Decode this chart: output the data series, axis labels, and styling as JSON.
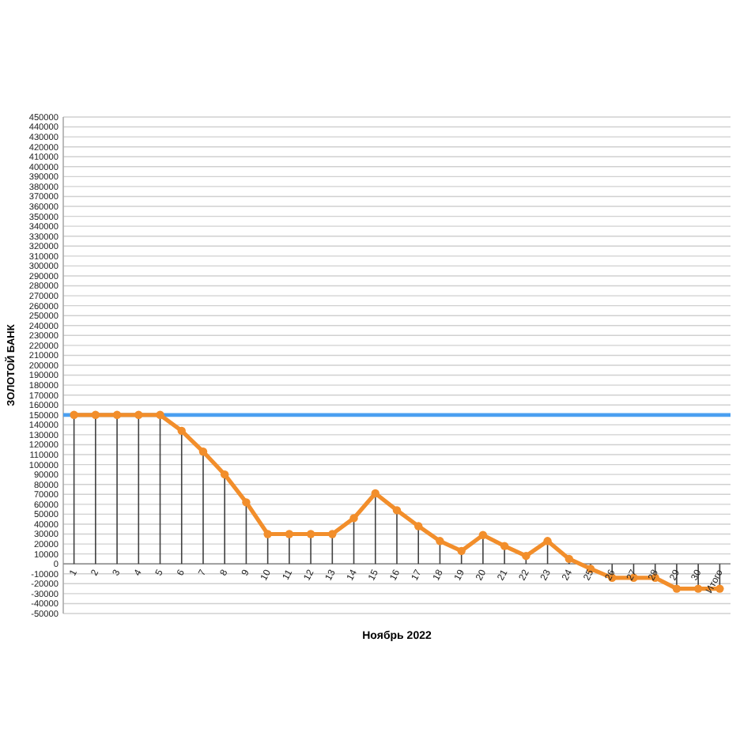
{
  "chart_data": {
    "type": "line",
    "xlabel": "Ноябрь 2022",
    "ylabel": "ЗОЛОТОЙ БАНК",
    "categories": [
      "1",
      "2",
      "3",
      "4",
      "5",
      "6",
      "7",
      "8",
      "9",
      "10",
      "11",
      "12",
      "13",
      "14",
      "15",
      "16",
      "17",
      "18",
      "19",
      "20",
      "21",
      "22",
      "23",
      "24",
      "25",
      "26",
      "27",
      "28",
      "29",
      "30",
      "Итого"
    ],
    "series": [
      {
        "color": "#f28e2b",
        "values": [
          150000,
          150000,
          150000,
          150000,
          150000,
          134000,
          113000,
          90000,
          62000,
          30000,
          30000,
          30000,
          30000,
          46000,
          71000,
          54000,
          38000,
          23000,
          13000,
          29000,
          18000,
          8000,
          23000,
          5000,
          -5000,
          -14000,
          -14000,
          -14000,
          -25000,
          -25000,
          -25000
        ]
      }
    ],
    "ylim": [
      -50000,
      450000
    ],
    "yticks": [
      -50000,
      -40000,
      -30000,
      -20000,
      -10000,
      0,
      10000,
      20000,
      30000,
      40000,
      50000,
      60000,
      70000,
      80000,
      90000,
      100000,
      110000,
      120000,
      130000,
      140000,
      150000,
      160000,
      170000,
      180000,
      190000,
      200000,
      210000,
      220000,
      230000,
      240000,
      250000,
      260000,
      270000,
      280000,
      290000,
      300000,
      310000,
      320000,
      330000,
      340000,
      350000,
      360000,
      370000,
      380000,
      390000,
      400000,
      410000,
      420000,
      430000,
      440000,
      450000
    ],
    "ref_lines": [
      {
        "axis": "y",
        "value": 150000,
        "color": "#4a9ff0"
      }
    ],
    "grid": "y",
    "marker": "circle",
    "line_style": "solid"
  }
}
